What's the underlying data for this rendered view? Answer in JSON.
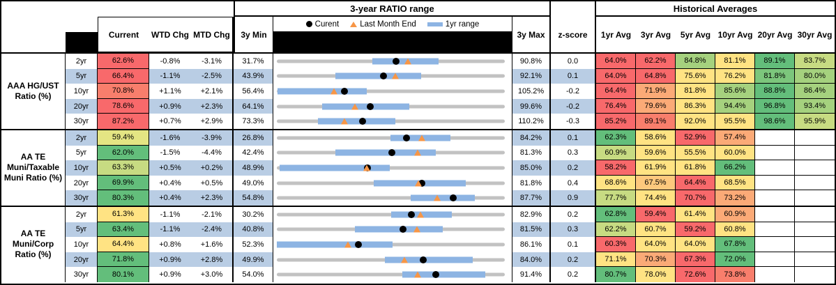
{
  "header": {
    "chart_section_title": "3-year RATIO range",
    "hist_section_title": "Historical Averages",
    "legend": {
      "current": "Curent",
      "last_month": "Last Month End",
      "range": "1yr range"
    },
    "columns": {
      "current": "Current",
      "wtd": "WTD Chg",
      "mtd": "MTD Chg",
      "min": "3y Min",
      "max": "3y Max",
      "z": "z-score",
      "avgs": [
        "1yr Avg",
        "3yr Avg",
        "5yr Avg",
        "10yr Avg",
        "20yr Avg",
        "30yr Avg"
      ]
    }
  },
  "palette": {
    "red": "#F8696B",
    "red2": "#F87E6C",
    "orange": "#FBAA77",
    "yelloworange": "#FDC87D",
    "yellow": "#FFE383",
    "paleyg": "#E4E583",
    "ygreen": "#C7DB82",
    "lgreen": "#A5D17E",
    "green2": "#7CC67C",
    "green": "#63BE7B",
    "stripe_blue": "#B9CDE4",
    "bar_blue": "#8DB4E3",
    "track_gray": "#C2C2C2",
    "marker_orange": "#F79646",
    "marker_black": "#000000"
  },
  "groups": [
    {
      "label": "AAA HG/UST Ratio (%)",
      "rows": [
        {
          "tenor": "2yr",
          "stripe": false,
          "current": "62.6%",
          "current_color": "red",
          "wtd": "-0.8%",
          "mtd": "-3.1%",
          "min": "31.7%",
          "max": "90.8%",
          "z": "0.0",
          "avgs": [
            {
              "v": "64.0%",
              "c": "red"
            },
            {
              "v": "62.2%",
              "c": "red"
            },
            {
              "v": "84.8%",
              "c": "lgreen"
            },
            {
              "v": "81.1%",
              "c": "yellow"
            },
            {
              "v": "89.1%",
              "c": "green"
            },
            {
              "v": "83.7%",
              "c": "ygreen"
            }
          ]
        },
        {
          "tenor": "5yr",
          "stripe": true,
          "current": "66.4%",
          "current_color": "red",
          "wtd": "-1.1%",
          "mtd": "-2.5%",
          "min": "43.9%",
          "max": "92.1%",
          "z": "0.1",
          "avgs": [
            {
              "v": "64.0%",
              "c": "red"
            },
            {
              "v": "64.8%",
              "c": "red"
            },
            {
              "v": "75.6%",
              "c": "yellow"
            },
            {
              "v": "76.2%",
              "c": "yellow"
            },
            {
              "v": "81.8%",
              "c": "green2"
            },
            {
              "v": "80.0%",
              "c": "lgreen"
            }
          ]
        },
        {
          "tenor": "10yr",
          "stripe": false,
          "current": "70.8%",
          "current_color": "red2",
          "wtd": "+1.1%",
          "mtd": "+2.1%",
          "min": "56.4%",
          "max": "105.2%",
          "z": "-0.2",
          "avgs": [
            {
              "v": "64.4%",
              "c": "red"
            },
            {
              "v": "71.9%",
              "c": "orange"
            },
            {
              "v": "81.8%",
              "c": "yellow"
            },
            {
              "v": "85.6%",
              "c": "lgreen"
            },
            {
              "v": "88.8%",
              "c": "green"
            },
            {
              "v": "86.4%",
              "c": "lgreen"
            }
          ]
        },
        {
          "tenor": "20yr",
          "stripe": true,
          "current": "78.6%",
          "current_color": "red",
          "wtd": "+0.9%",
          "mtd": "+2.3%",
          "min": "64.1%",
          "max": "99.6%",
          "z": "-0.2",
          "avgs": [
            {
              "v": "76.4%",
              "c": "red"
            },
            {
              "v": "79.6%",
              "c": "orange"
            },
            {
              "v": "86.3%",
              "c": "yellow"
            },
            {
              "v": "94.4%",
              "c": "lgreen"
            },
            {
              "v": "96.8%",
              "c": "green"
            },
            {
              "v": "93.4%",
              "c": "lgreen"
            }
          ]
        },
        {
          "tenor": "30yr",
          "stripe": false,
          "current": "87.2%",
          "current_color": "red",
          "wtd": "+0.7%",
          "mtd": "+2.9%",
          "min": "73.3%",
          "max": "110.2%",
          "z": "-0.3",
          "avgs": [
            {
              "v": "85.2%",
              "c": "red"
            },
            {
              "v": "89.1%",
              "c": "red2"
            },
            {
              "v": "92.0%",
              "c": "yellow"
            },
            {
              "v": "95.5%",
              "c": "yellow"
            },
            {
              "v": "98.6%",
              "c": "green"
            },
            {
              "v": "95.9%",
              "c": "ygreen"
            }
          ]
        }
      ]
    },
    {
      "label": "AA TE Muni/Taxable Muni Ratio (%)",
      "rows": [
        {
          "tenor": "2yr",
          "stripe": true,
          "current": "59.4%",
          "current_color": "paleyg",
          "wtd": "-1.6%",
          "mtd": "-3.9%",
          "min": "26.8%",
          "max": "84.2%",
          "z": "0.1",
          "avgs": [
            {
              "v": "62.3%",
              "c": "green"
            },
            {
              "v": "58.6%",
              "c": "yellow"
            },
            {
              "v": "52.9%",
              "c": "red"
            },
            {
              "v": "57.4%",
              "c": "orange"
            },
            {
              "v": "",
              "c": null
            },
            {
              "v": "",
              "c": null
            }
          ]
        },
        {
          "tenor": "5yr",
          "stripe": false,
          "current": "62.0%",
          "current_color": "green",
          "wtd": "-1.5%",
          "mtd": "-4.4%",
          "min": "42.4%",
          "max": "81.3%",
          "z": "0.3",
          "avgs": [
            {
              "v": "60.9%",
              "c": "ygreen"
            },
            {
              "v": "59.6%",
              "c": "yellow"
            },
            {
              "v": "55.5%",
              "c": "yellow"
            },
            {
              "v": "60.0%",
              "c": "yellow"
            },
            {
              "v": "",
              "c": null
            },
            {
              "v": "",
              "c": null
            }
          ]
        },
        {
          "tenor": "10yr",
          "stripe": true,
          "current": "63.3%",
          "current_color": "ygreen",
          "wtd": "+0.5%",
          "mtd": "+0.2%",
          "min": "48.9%",
          "max": "85.0%",
          "z": "0.2",
          "avgs": [
            {
              "v": "58.2%",
              "c": "red"
            },
            {
              "v": "61.9%",
              "c": "yellow"
            },
            {
              "v": "61.8%",
              "c": "yellow"
            },
            {
              "v": "66.2%",
              "c": "green"
            },
            {
              "v": "",
              "c": null
            },
            {
              "v": "",
              "c": null
            }
          ]
        },
        {
          "tenor": "20yr",
          "stripe": false,
          "current": "69.9%",
          "current_color": "green",
          "wtd": "+0.4%",
          "mtd": "+0.5%",
          "min": "49.0%",
          "max": "81.8%",
          "z": "0.4",
          "avgs": [
            {
              "v": "68.6%",
              "c": "yellow"
            },
            {
              "v": "67.5%",
              "c": "yelloworange"
            },
            {
              "v": "64.4%",
              "c": "red"
            },
            {
              "v": "68.5%",
              "c": "yellow"
            },
            {
              "v": "",
              "c": null
            },
            {
              "v": "",
              "c": null
            }
          ]
        },
        {
          "tenor": "30yr",
          "stripe": true,
          "current": "80.3%",
          "current_color": "green",
          "wtd": "+0.4%",
          "mtd": "+2.3%",
          "min": "54.8%",
          "max": "87.7%",
          "z": "0.9",
          "avgs": [
            {
              "v": "77.7%",
              "c": "ygreen"
            },
            {
              "v": "74.4%",
              "c": "yellow"
            },
            {
              "v": "70.7%",
              "c": "red"
            },
            {
              "v": "73.2%",
              "c": "orange"
            },
            {
              "v": "",
              "c": null
            },
            {
              "v": "",
              "c": null
            }
          ]
        }
      ]
    },
    {
      "label": "AA TE Muni/Corp Ratio (%)",
      "rows": [
        {
          "tenor": "2yr",
          "stripe": false,
          "current": "61.3%",
          "current_color": "yellow",
          "wtd": "-1.1%",
          "mtd": "-2.1%",
          "min": "30.2%",
          "max": "82.9%",
          "z": "0.2",
          "avgs": [
            {
              "v": "62.8%",
              "c": "green"
            },
            {
              "v": "59.4%",
              "c": "red"
            },
            {
              "v": "61.4%",
              "c": "yellow"
            },
            {
              "v": "60.9%",
              "c": "orange"
            },
            {
              "v": "",
              "c": null
            },
            {
              "v": "",
              "c": null
            }
          ]
        },
        {
          "tenor": "5yr",
          "stripe": true,
          "current": "63.4%",
          "current_color": "green",
          "wtd": "-1.1%",
          "mtd": "-2.4%",
          "min": "40.8%",
          "max": "81.5%",
          "z": "0.3",
          "avgs": [
            {
              "v": "62.2%",
              "c": "ygreen"
            },
            {
              "v": "60.7%",
              "c": "yellow"
            },
            {
              "v": "59.2%",
              "c": "red"
            },
            {
              "v": "60.8%",
              "c": "yellow"
            },
            {
              "v": "",
              "c": null
            },
            {
              "v": "",
              "c": null
            }
          ]
        },
        {
          "tenor": "10yr",
          "stripe": false,
          "current": "64.4%",
          "current_color": "yellow",
          "wtd": "+0.8%",
          "mtd": "+1.6%",
          "min": "52.3%",
          "max": "86.1%",
          "z": "0.1",
          "avgs": [
            {
              "v": "60.3%",
              "c": "red"
            },
            {
              "v": "64.0%",
              "c": "yellow"
            },
            {
              "v": "64.0%",
              "c": "yellow"
            },
            {
              "v": "67.8%",
              "c": "green"
            },
            {
              "v": "",
              "c": null
            },
            {
              "v": "",
              "c": null
            }
          ]
        },
        {
          "tenor": "20yr",
          "stripe": true,
          "current": "71.8%",
          "current_color": "green",
          "wtd": "+0.9%",
          "mtd": "+2.8%",
          "min": "49.9%",
          "max": "84.0%",
          "z": "0.2",
          "avgs": [
            {
              "v": "71.1%",
              "c": "yellow"
            },
            {
              "v": "70.3%",
              "c": "orange"
            },
            {
              "v": "67.3%",
              "c": "red"
            },
            {
              "v": "72.0%",
              "c": "green"
            },
            {
              "v": "",
              "c": null
            },
            {
              "v": "",
              "c": null
            }
          ]
        },
        {
          "tenor": "30yr",
          "stripe": false,
          "current": "80.1%",
          "current_color": "green",
          "wtd": "+0.9%",
          "mtd": "+3.0%",
          "min": "54.0%",
          "max": "91.4%",
          "z": "0.2",
          "avgs": [
            {
              "v": "80.7%",
              "c": "green"
            },
            {
              "v": "78.0%",
              "c": "yellow"
            },
            {
              "v": "72.6%",
              "c": "red"
            },
            {
              "v": "73.8%",
              "c": "red2"
            },
            {
              "v": "",
              "c": null
            },
            {
              "v": "",
              "c": null
            }
          ]
        }
      ]
    }
  ],
  "chart_data": {
    "type": "scatter",
    "title": "3-year RATIO range",
    "legend": [
      "Curent",
      "Last Month End",
      "1yr range"
    ],
    "x_unit": "ratio %",
    "note": "Each row: gray track spans 3y Min to 3y Max; blue bar is 1yr range; black dot = Current; orange triangle = Last Month End",
    "rows": [
      {
        "group": "AAA HG/UST Ratio (%)",
        "tenor": "2yr",
        "min3y": 31.7,
        "max3y": 90.8,
        "current": 62.6,
        "last_month_end": 65.7,
        "yr1_low": 56.5,
        "yr1_high": 73.6
      },
      {
        "group": "AAA HG/UST Ratio (%)",
        "tenor": "5yr",
        "min3y": 43.9,
        "max3y": 92.1,
        "current": 66.4,
        "last_month_end": 68.9,
        "yr1_low": 56.3,
        "yr1_high": 74.4
      },
      {
        "group": "AAA HG/UST Ratio (%)",
        "tenor": "10yr",
        "min3y": 56.4,
        "max3y": 105.2,
        "current": 70.8,
        "last_month_end": 68.7,
        "yr1_low": 56.6,
        "yr1_high": 75.6
      },
      {
        "group": "AAA HG/UST Ratio (%)",
        "tenor": "20yr",
        "min3y": 64.1,
        "max3y": 99.6,
        "current": 78.6,
        "last_month_end": 76.3,
        "yr1_low": 71.1,
        "yr1_high": 84.7
      },
      {
        "group": "AAA HG/UST Ratio (%)",
        "tenor": "30yr",
        "min3y": 73.3,
        "max3y": 110.2,
        "current": 87.2,
        "last_month_end": 84.3,
        "yr1_low": 80.0,
        "yr1_high": 92.5
      },
      {
        "group": "AA TE Muni/Taxable Muni Ratio (%)",
        "tenor": "2yr",
        "min3y": 26.8,
        "max3y": 84.2,
        "current": 59.4,
        "last_month_end": 63.3,
        "yr1_low": 55.5,
        "yr1_high": 70.6
      },
      {
        "group": "AA TE Muni/Taxable Muni Ratio (%)",
        "tenor": "5yr",
        "min3y": 42.4,
        "max3y": 81.3,
        "current": 62.0,
        "last_month_end": 66.4,
        "yr1_low": 52.4,
        "yr1_high": 69.5
      },
      {
        "group": "AA TE Muni/Taxable Muni Ratio (%)",
        "tenor": "10yr",
        "min3y": 48.9,
        "max3y": 85.0,
        "current": 63.3,
        "last_month_end": 63.1,
        "yr1_low": 49.3,
        "yr1_high": 66.8
      },
      {
        "group": "AA TE Muni/Taxable Muni Ratio (%)",
        "tenor": "20yr",
        "min3y": 49.0,
        "max3y": 81.8,
        "current": 69.9,
        "last_month_end": 69.4,
        "yr1_low": 62.9,
        "yr1_high": 76.2
      },
      {
        "group": "AA TE Muni/Taxable Muni Ratio (%)",
        "tenor": "30yr",
        "min3y": 54.8,
        "max3y": 87.7,
        "current": 80.3,
        "last_month_end": 78.0,
        "yr1_low": 74.1,
        "yr1_high": 83.4
      },
      {
        "group": "AA TE Muni/Corp Ratio (%)",
        "tenor": "2yr",
        "min3y": 30.2,
        "max3y": 82.9,
        "current": 61.3,
        "last_month_end": 63.4,
        "yr1_low": 56.6,
        "yr1_high": 70.7
      },
      {
        "group": "AA TE Muni/Corp Ratio (%)",
        "tenor": "5yr",
        "min3y": 40.8,
        "max3y": 81.5,
        "current": 63.4,
        "last_month_end": 65.8,
        "yr1_low": 54.8,
        "yr1_high": 70.4
      },
      {
        "group": "AA TE Muni/Corp Ratio (%)",
        "tenor": "10yr",
        "min3y": 52.3,
        "max3y": 86.1,
        "current": 64.4,
        "last_month_end": 62.8,
        "yr1_low": 52.3,
        "yr1_high": 69.5
      },
      {
        "group": "AA TE Muni/Corp Ratio (%)",
        "tenor": "20yr",
        "min3y": 49.9,
        "max3y": 84.0,
        "current": 71.8,
        "last_month_end": 69.0,
        "yr1_low": 66.1,
        "yr1_high": 79.2
      },
      {
        "group": "AA TE Muni/Corp Ratio (%)",
        "tenor": "30yr",
        "min3y": 54.0,
        "max3y": 91.4,
        "current": 80.1,
        "last_month_end": 77.1,
        "yr1_low": 74.6,
        "yr1_high": 88.2
      }
    ]
  }
}
